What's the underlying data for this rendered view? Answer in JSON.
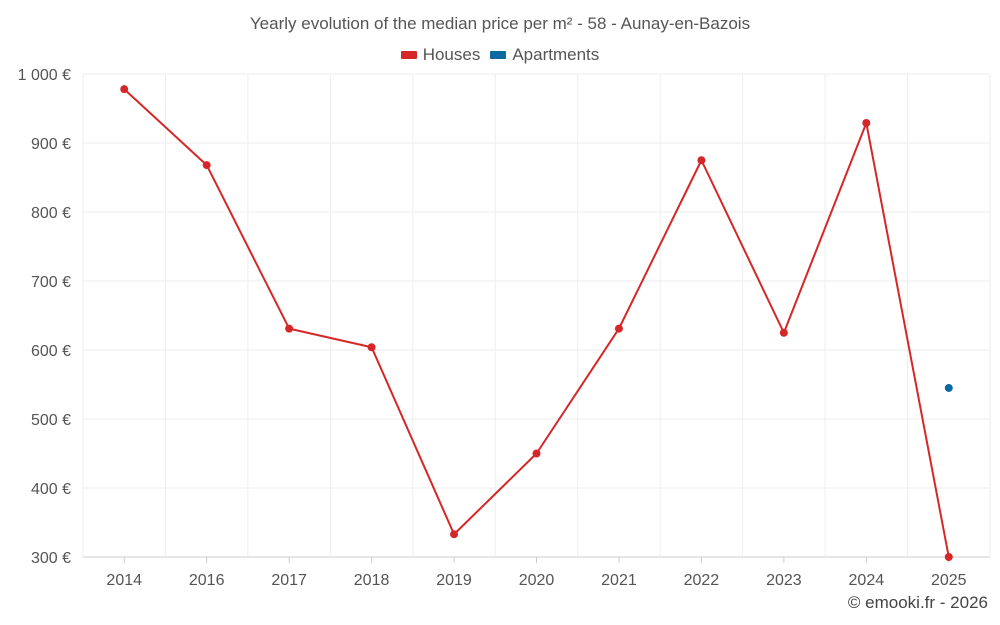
{
  "colors": {
    "houses": "#d62728",
    "apartments": "#0b6aa2",
    "grid": "#eeeeee",
    "axis": "#cccccc"
  },
  "legend": {
    "houses": "Houses",
    "apartments": "Apartments"
  },
  "credit": "© emooki.fr - 2026",
  "chart_data": {
    "type": "line",
    "title": "Yearly evolution of the median price per m² - 58 - Aunay-en-Bazois",
    "categories": [
      "2014",
      "2016",
      "2017",
      "2018",
      "2019",
      "2020",
      "2021",
      "2022",
      "2023",
      "2024",
      "2025"
    ],
    "ylim": [
      300,
      1000
    ],
    "yticks": [
      300,
      400,
      500,
      600,
      700,
      800,
      900,
      1000
    ],
    "ytick_labels": [
      "300 €",
      "400 €",
      "500 €",
      "600 €",
      "700 €",
      "800 €",
      "900 €",
      "1 000 €"
    ],
    "grid": true,
    "legend_position": "top-center",
    "series": [
      {
        "name": "Houses",
        "values": [
          978,
          868,
          631,
          604,
          333,
          450,
          631,
          875,
          625,
          929,
          300
        ]
      },
      {
        "name": "Apartments",
        "values": [
          null,
          null,
          null,
          null,
          null,
          null,
          null,
          null,
          null,
          null,
          545
        ]
      }
    ]
  }
}
